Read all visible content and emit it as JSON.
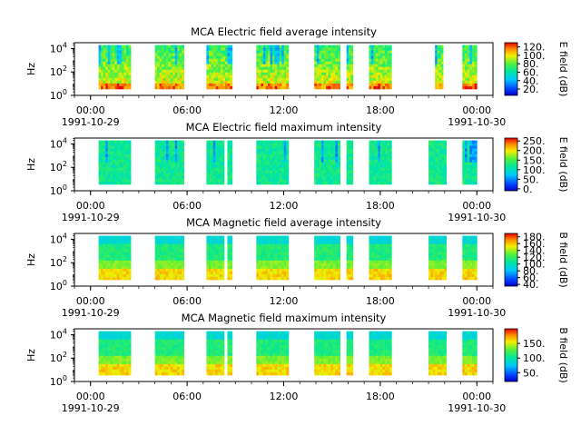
{
  "chart_data": [
    {
      "type": "heatmap",
      "title": "MCA  Electric field average intensity",
      "ylabel": "Hz",
      "yscale": "log",
      "ylim_exp": [
        0,
        4.5
      ],
      "yticks": [
        {
          "base": "10",
          "exp": "0"
        },
        {
          "base": "10",
          "exp": "2"
        },
        {
          "base": "10",
          "exp": "4"
        }
      ],
      "xlim_hours": [
        -1,
        25
      ],
      "xticks": [
        {
          "hour": 0,
          "time": "00:00",
          "date": "1991-10-29"
        },
        {
          "hour": 6,
          "time": "06:00",
          "date": ""
        },
        {
          "hour": 12,
          "time": "12:00",
          "date": ""
        },
        {
          "hour": 18,
          "time": "18:00",
          "date": ""
        },
        {
          "hour": 24,
          "time": "00:00",
          "date": "1991-10-30"
        }
      ],
      "colorbar": {
        "label": "E field (dB)",
        "range": [
          5,
          130
        ],
        "ticks": [
          "120.",
          "100.",
          "80.",
          "60.",
          "40.",
          "20."
        ],
        "tick_values": [
          120,
          100,
          80,
          60,
          40,
          20
        ]
      },
      "segments_hours": [
        [
          0.5,
          2.5
        ],
        [
          4,
          5.8
        ],
        [
          7.2,
          8.8
        ],
        [
          10.3,
          12.3
        ],
        [
          13.9,
          15.5
        ],
        [
          15.9,
          16.3
        ],
        [
          17.3,
          18.7
        ],
        [
          21.4,
          21.9
        ],
        [
          23.1,
          24
        ]
      ],
      "pattern": "e_avg"
    },
    {
      "type": "heatmap",
      "title": "MCA  Electric field maximum intensity",
      "ylabel": "Hz",
      "yscale": "log",
      "ylim_exp": [
        0,
        4.5
      ],
      "yticks": [
        {
          "base": "10",
          "exp": "0"
        },
        {
          "base": "10",
          "exp": "2"
        },
        {
          "base": "10",
          "exp": "4"
        }
      ],
      "xlim_hours": [
        -1,
        25
      ],
      "xticks": [
        {
          "hour": 0,
          "time": "00:00",
          "date": "1991-10-29"
        },
        {
          "hour": 6,
          "time": "06:00",
          "date": ""
        },
        {
          "hour": 12,
          "time": "12:00",
          "date": ""
        },
        {
          "hour": 18,
          "time": "18:00",
          "date": ""
        },
        {
          "hour": 24,
          "time": "00:00",
          "date": "1991-10-30"
        }
      ],
      "colorbar": {
        "label": "E field (dB)",
        "range": [
          -10,
          265
        ],
        "ticks": [
          "250.",
          "200.",
          "150.",
          "100.",
          "50.",
          "0."
        ],
        "tick_values": [
          250,
          200,
          150,
          100,
          50,
          0
        ]
      },
      "segments_hours": [
        [
          0.5,
          2.5
        ],
        [
          4,
          5.8
        ],
        [
          7.2,
          8.3
        ],
        [
          8.5,
          8.8
        ],
        [
          10.3,
          12.3
        ],
        [
          13.9,
          15.5
        ],
        [
          15.9,
          16.3
        ],
        [
          17.3,
          18.7
        ],
        [
          21,
          22.1
        ],
        [
          23.1,
          24
        ]
      ],
      "pattern": "e_max"
    },
    {
      "type": "heatmap",
      "title": "MCA  Magnetic field average intensity",
      "ylabel": "Hz",
      "yscale": "log",
      "ylim_exp": [
        0,
        4.5
      ],
      "yticks": [
        {
          "base": "10",
          "exp": "0"
        },
        {
          "base": "10",
          "exp": "2"
        },
        {
          "base": "10",
          "exp": "4"
        }
      ],
      "xlim_hours": [
        -1,
        25
      ],
      "xticks": [
        {
          "hour": 0,
          "time": "00:00",
          "date": "1991-10-29"
        },
        {
          "hour": 6,
          "time": "06:00",
          "date": ""
        },
        {
          "hour": 12,
          "time": "12:00",
          "date": ""
        },
        {
          "hour": 18,
          "time": "18:00",
          "date": ""
        },
        {
          "hour": 24,
          "time": "00:00",
          "date": "1991-10-30"
        }
      ],
      "colorbar": {
        "label": "B field (dB)",
        "range": [
          35,
          190
        ],
        "ticks": [
          "180.",
          "160.",
          "140.",
          "120.",
          "100.",
          "80.",
          "60.",
          "40."
        ],
        "tick_values": [
          180,
          160,
          140,
          120,
          100,
          80,
          60,
          40
        ]
      },
      "segments_hours": [
        [
          0.5,
          2.5
        ],
        [
          4,
          5.8
        ],
        [
          7.2,
          8.3
        ],
        [
          8.5,
          8.8
        ],
        [
          10.3,
          12.3
        ],
        [
          13.9,
          15.5
        ],
        [
          15.9,
          16.3
        ],
        [
          17.3,
          18.7
        ],
        [
          21,
          22.1
        ],
        [
          23.1,
          24
        ]
      ],
      "pattern": "b"
    },
    {
      "type": "heatmap",
      "title": "MCA  Magnetic field maximum intensity",
      "ylabel": "Hz",
      "yscale": "log",
      "ylim_exp": [
        0,
        4.5
      ],
      "yticks": [
        {
          "base": "10",
          "exp": "0"
        },
        {
          "base": "10",
          "exp": "2"
        },
        {
          "base": "10",
          "exp": "4"
        }
      ],
      "xlim_hours": [
        -1,
        25
      ],
      "xticks": [
        {
          "hour": 0,
          "time": "00:00",
          "date": "1991-10-29"
        },
        {
          "hour": 6,
          "time": "06:00",
          "date": ""
        },
        {
          "hour": 12,
          "time": "12:00",
          "date": ""
        },
        {
          "hour": 18,
          "time": "18:00",
          "date": ""
        },
        {
          "hour": 24,
          "time": "00:00",
          "date": "1991-10-30"
        }
      ],
      "colorbar": {
        "label": "B field (dB)",
        "range": [
          20,
          200
        ],
        "ticks": [
          "150.",
          "100.",
          "50."
        ],
        "tick_values": [
          150,
          100,
          50
        ]
      },
      "segments_hours": [
        [
          0.5,
          2.5
        ],
        [
          4,
          5.8
        ],
        [
          7.2,
          8.3
        ],
        [
          8.5,
          8.8
        ],
        [
          10.3,
          12.3
        ],
        [
          13.9,
          15.5
        ],
        [
          15.9,
          16.3
        ],
        [
          17.3,
          18.7
        ],
        [
          21,
          22.1
        ],
        [
          23.1,
          24
        ]
      ],
      "pattern": "b"
    }
  ]
}
